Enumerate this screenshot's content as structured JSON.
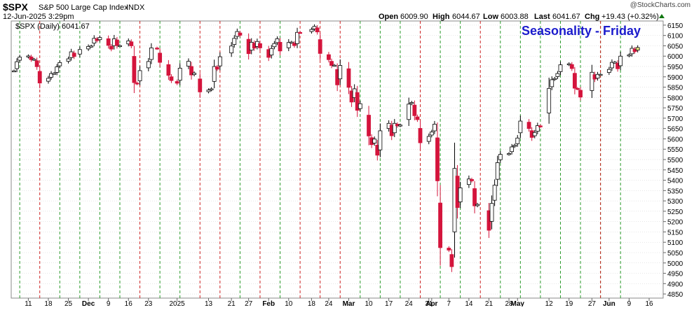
{
  "header": {
    "symbol": "$SPX",
    "description": "S&P 500 Large Cap Index",
    "exchange": "INDX",
    "date": "12-Jun-2025 3:29pm",
    "watermark": "@StockCharts.com",
    "open_label": "Open",
    "open_value": "6009.90",
    "high_label": "High",
    "high_value": "6044.67",
    "low_label": "Low",
    "low_value": "6003.88",
    "last_label": "Last",
    "last_value": "6041.67",
    "chg_label": "Chg",
    "chg_value": "+19.43 (+0.32%)"
  },
  "legend": {
    "label": "$SPX (Daily) 6041.67"
  },
  "title": "Seasonality - Friday",
  "colors": {
    "up": "#000000",
    "down": "#d4143c",
    "title": "#1a1acc",
    "green_line": "#2a9a2a",
    "red_line": "#cc2222",
    "grid": "#cccccc",
    "highlight": "#f4f08a",
    "chg": "#117711"
  },
  "chart_data": {
    "type": "candlestick",
    "title": "Seasonality - Friday",
    "ylim": [
      4830,
      6170
    ],
    "y_ticks": [
      4850,
      4900,
      4950,
      5000,
      5050,
      5100,
      5150,
      5200,
      5250,
      5300,
      5350,
      5400,
      5450,
      5500,
      5550,
      5600,
      5650,
      5700,
      5750,
      5800,
      5850,
      5900,
      5950,
      6000,
      6050,
      6100,
      6150
    ],
    "x_start": "2024-11-06",
    "x_end": "2025-06-16",
    "x_ticks": [
      {
        "date": "2024-11-11",
        "label": "11"
      },
      {
        "date": "2024-11-18",
        "label": "18"
      },
      {
        "date": "2024-11-25",
        "label": "25"
      },
      {
        "date": "2024-12-02",
        "label": "Dec"
      },
      {
        "date": "2024-12-09",
        "label": "9"
      },
      {
        "date": "2024-12-16",
        "label": "16"
      },
      {
        "date": "2024-12-23",
        "label": "23"
      },
      {
        "date": "2025-01-02",
        "label": "2025"
      },
      {
        "date": "2025-01-13",
        "label": "13"
      },
      {
        "date": "2025-01-21",
        "label": "21"
      },
      {
        "date": "2025-01-27",
        "label": "27"
      },
      {
        "date": "2025-02-03",
        "label": "Feb"
      },
      {
        "date": "2025-02-10",
        "label": "10"
      },
      {
        "date": "2025-02-18",
        "label": "18"
      },
      {
        "date": "2025-02-24",
        "label": "24"
      },
      {
        "date": "2025-03-03",
        "label": "Mar"
      },
      {
        "date": "2025-03-10",
        "label": "10"
      },
      {
        "date": "2025-03-17",
        "label": "17"
      },
      {
        "date": "2025-03-24",
        "label": "24"
      },
      {
        "date": "2025-03-31",
        "label": "31"
      },
      {
        "date": "2025-04-01",
        "label": "Apr"
      },
      {
        "date": "2025-04-07",
        "label": "7"
      },
      {
        "date": "2025-04-14",
        "label": "14"
      },
      {
        "date": "2025-04-21",
        "label": "21"
      },
      {
        "date": "2025-04-28",
        "label": "28"
      },
      {
        "date": "2025-05-01",
        "label": "May"
      },
      {
        "date": "2025-05-12",
        "label": "12"
      },
      {
        "date": "2025-05-19",
        "label": "19"
      },
      {
        "date": "2025-05-27",
        "label": "27"
      },
      {
        "date": "2025-06-02",
        "label": "Jun"
      },
      {
        "date": "2025-06-09",
        "label": "9"
      },
      {
        "date": "2025-06-16",
        "label": "16"
      }
    ],
    "fridays_green": [
      "2024-11-08",
      "2024-11-22",
      "2024-11-29",
      "2024-12-06",
      "2024-12-13",
      "2024-12-27",
      "2025-01-03",
      "2025-01-24",
      "2025-02-07",
      "2025-03-07",
      "2025-03-14",
      "2025-03-21",
      "2025-04-04",
      "2025-04-11",
      "2025-04-25",
      "2025-05-02",
      "2025-05-09",
      "2025-05-16",
      "2025-05-23",
      "2025-05-30",
      "2025-06-06"
    ],
    "fridays_red": [
      "2024-11-15",
      "2024-12-20",
      "2025-01-10",
      "2025-01-17",
      "2025-01-31",
      "2025-02-14",
      "2025-02-21",
      "2025-02-28",
      "2025-03-28",
      "2025-04-18",
      "2025-05-30"
    ],
    "closes": [
      {
        "d": "2024-11-06",
        "c": 5929
      },
      {
        "d": "2024-11-07",
        "c": 5973
      },
      {
        "d": "2024-11-08",
        "c": 5995
      },
      {
        "d": "2024-11-11",
        "c": 6001
      },
      {
        "d": "2024-11-12",
        "c": 5983
      },
      {
        "d": "2024-11-13",
        "c": 5985
      },
      {
        "d": "2024-11-14",
        "c": 5949
      },
      {
        "d": "2024-11-15",
        "c": 5870
      },
      {
        "d": "2024-11-18",
        "c": 5893
      },
      {
        "d": "2024-11-19",
        "c": 5916
      },
      {
        "d": "2024-11-20",
        "c": 5917
      },
      {
        "d": "2024-11-21",
        "c": 5948
      },
      {
        "d": "2024-11-22",
        "c": 5969
      },
      {
        "d": "2024-11-25",
        "c": 5987
      },
      {
        "d": "2024-11-26",
        "c": 6021
      },
      {
        "d": "2024-11-27",
        "c": 5998
      },
      {
        "d": "2024-11-29",
        "c": 6032
      },
      {
        "d": "2024-12-02",
        "c": 6047
      },
      {
        "d": "2024-12-03",
        "c": 6049
      },
      {
        "d": "2024-12-04",
        "c": 6086
      },
      {
        "d": "2024-12-05",
        "c": 6075
      },
      {
        "d": "2024-12-06",
        "c": 6090
      },
      {
        "d": "2024-12-09",
        "c": 6052
      },
      {
        "d": "2024-12-10",
        "c": 6034
      },
      {
        "d": "2024-12-11",
        "c": 6084
      },
      {
        "d": "2024-12-12",
        "c": 6051
      },
      {
        "d": "2024-12-13",
        "c": 6051
      },
      {
        "d": "2024-12-16",
        "c": 6074
      },
      {
        "d": "2024-12-17",
        "c": 6050
      },
      {
        "d": "2024-12-18",
        "c": 5872
      },
      {
        "d": "2024-12-19",
        "c": 5867
      },
      {
        "d": "2024-12-20",
        "c": 5930
      },
      {
        "d": "2024-12-23",
        "c": 5974
      },
      {
        "d": "2024-12-24",
        "c": 6040
      },
      {
        "d": "2024-12-26",
        "c": 6037
      },
      {
        "d": "2024-12-27",
        "c": 5970
      },
      {
        "d": "2024-12-30",
        "c": 5907
      },
      {
        "d": "2024-12-31",
        "c": 5882
      },
      {
        "d": "2025-01-02",
        "c": 5869
      },
      {
        "d": "2025-01-03",
        "c": 5942
      },
      {
        "d": "2025-01-06",
        "c": 5975
      },
      {
        "d": "2025-01-07",
        "c": 5909
      },
      {
        "d": "2025-01-08",
        "c": 5918
      },
      {
        "d": "2025-01-10",
        "c": 5827
      },
      {
        "d": "2025-01-13",
        "c": 5836
      },
      {
        "d": "2025-01-14",
        "c": 5842
      },
      {
        "d": "2025-01-15",
        "c": 5950
      },
      {
        "d": "2025-01-16",
        "c": 5937
      },
      {
        "d": "2025-01-17",
        "c": 5997
      },
      {
        "d": "2025-01-21",
        "c": 6049
      },
      {
        "d": "2025-01-22",
        "c": 6086
      },
      {
        "d": "2025-01-23",
        "c": 6119
      },
      {
        "d": "2025-01-24",
        "c": 6101
      },
      {
        "d": "2025-01-27",
        "c": 6012
      },
      {
        "d": "2025-01-28",
        "c": 6067
      },
      {
        "d": "2025-01-29",
        "c": 6039
      },
      {
        "d": "2025-01-30",
        "c": 6071
      },
      {
        "d": "2025-01-31",
        "c": 6040
      },
      {
        "d": "2025-02-03",
        "c": 5994
      },
      {
        "d": "2025-02-04",
        "c": 6037
      },
      {
        "d": "2025-02-05",
        "c": 6061
      },
      {
        "d": "2025-02-06",
        "c": 6084
      },
      {
        "d": "2025-02-07",
        "c": 6025
      },
      {
        "d": "2025-02-10",
        "c": 6066
      },
      {
        "d": "2025-02-11",
        "c": 6068
      },
      {
        "d": "2025-02-12",
        "c": 6051
      },
      {
        "d": "2025-02-13",
        "c": 6115
      },
      {
        "d": "2025-02-14",
        "c": 6114
      },
      {
        "d": "2025-02-18",
        "c": 6129
      },
      {
        "d": "2025-02-19",
        "c": 6144
      },
      {
        "d": "2025-02-20",
        "c": 6117
      },
      {
        "d": "2025-02-21",
        "c": 6013
      },
      {
        "d": "2025-02-24",
        "c": 5983
      },
      {
        "d": "2025-02-25",
        "c": 5955
      },
      {
        "d": "2025-02-26",
        "c": 5956
      },
      {
        "d": "2025-02-27",
        "c": 5861
      },
      {
        "d": "2025-02-28",
        "c": 5955
      },
      {
        "d": "2025-03-03",
        "c": 5849
      },
      {
        "d": "2025-03-04",
        "c": 5778
      },
      {
        "d": "2025-03-05",
        "c": 5842
      },
      {
        "d": "2025-03-06",
        "c": 5738
      },
      {
        "d": "2025-03-07",
        "c": 5770
      },
      {
        "d": "2025-03-10",
        "c": 5614
      },
      {
        "d": "2025-03-11",
        "c": 5572
      },
      {
        "d": "2025-03-12",
        "c": 5599
      },
      {
        "d": "2025-03-13",
        "c": 5521
      },
      {
        "d": "2025-03-14",
        "c": 5639
      },
      {
        "d": "2025-03-17",
        "c": 5675
      },
      {
        "d": "2025-03-18",
        "c": 5615
      },
      {
        "d": "2025-03-19",
        "c": 5675
      },
      {
        "d": "2025-03-20",
        "c": 5663
      },
      {
        "d": "2025-03-21",
        "c": 5667
      },
      {
        "d": "2025-03-24",
        "c": 5768
      },
      {
        "d": "2025-03-25",
        "c": 5776
      },
      {
        "d": "2025-03-26",
        "c": 5712
      },
      {
        "d": "2025-03-27",
        "c": 5693
      },
      {
        "d": "2025-03-28",
        "c": 5581
      },
      {
        "d": "2025-03-31",
        "c": 5612
      },
      {
        "d": "2025-04-01",
        "c": 5633
      },
      {
        "d": "2025-04-02",
        "c": 5671
      },
      {
        "d": "2025-04-03",
        "c": 5397
      },
      {
        "d": "2025-04-04",
        "c": 5074
      },
      {
        "d": "2025-04-07",
        "c": 5062
      },
      {
        "d": "2025-04-08",
        "c": 4982
      },
      {
        "d": "2025-04-09",
        "c": 5457
      },
      {
        "d": "2025-04-10",
        "c": 5268
      },
      {
        "d": "2025-04-11",
        "c": 5363
      },
      {
        "d": "2025-04-14",
        "c": 5406
      },
      {
        "d": "2025-04-15",
        "c": 5397
      },
      {
        "d": "2025-04-16",
        "c": 5276
      },
      {
        "d": "2025-04-17",
        "c": 5283
      },
      {
        "d": "2025-04-21",
        "c": 5158
      },
      {
        "d": "2025-04-22",
        "c": 5288
      },
      {
        "d": "2025-04-23",
        "c": 5376
      },
      {
        "d": "2025-04-24",
        "c": 5485
      },
      {
        "d": "2025-04-25",
        "c": 5525
      },
      {
        "d": "2025-04-28",
        "c": 5529
      },
      {
        "d": "2025-04-29",
        "c": 5561
      },
      {
        "d": "2025-04-30",
        "c": 5569
      },
      {
        "d": "2025-05-01",
        "c": 5604
      },
      {
        "d": "2025-05-02",
        "c": 5686
      },
      {
        "d": "2025-05-05",
        "c": 5650
      },
      {
        "d": "2025-05-06",
        "c": 5607
      },
      {
        "d": "2025-05-07",
        "c": 5631
      },
      {
        "d": "2025-05-08",
        "c": 5664
      },
      {
        "d": "2025-05-09",
        "c": 5660
      },
      {
        "d": "2025-05-12",
        "c": 5844
      },
      {
        "d": "2025-05-13",
        "c": 5886
      },
      {
        "d": "2025-05-14",
        "c": 5892
      },
      {
        "d": "2025-05-15",
        "c": 5916
      },
      {
        "d": "2025-05-16",
        "c": 5958
      },
      {
        "d": "2025-05-19",
        "c": 5963
      },
      {
        "d": "2025-05-20",
        "c": 5940
      },
      {
        "d": "2025-05-21",
        "c": 5845
      },
      {
        "d": "2025-05-22",
        "c": 5842
      },
      {
        "d": "2025-05-23",
        "c": 5802
      },
      {
        "d": "2025-05-27",
        "c": 5922
      },
      {
        "d": "2025-05-28",
        "c": 5889
      },
      {
        "d": "2025-05-29",
        "c": 5912
      },
      {
        "d": "2025-05-30",
        "c": 5912
      },
      {
        "d": "2025-06-02",
        "c": 5936
      },
      {
        "d": "2025-06-03",
        "c": 5970
      },
      {
        "d": "2025-06-04",
        "c": 5971
      },
      {
        "d": "2025-06-05",
        "c": 5939
      },
      {
        "d": "2025-06-06",
        "c": 6000
      },
      {
        "d": "2025-06-09",
        "c": 6006
      },
      {
        "d": "2025-06-10",
        "c": 6038
      },
      {
        "d": "2025-06-11",
        "c": 6022
      },
      {
        "d": "2025-06-12",
        "c": 6041.67
      }
    ]
  }
}
